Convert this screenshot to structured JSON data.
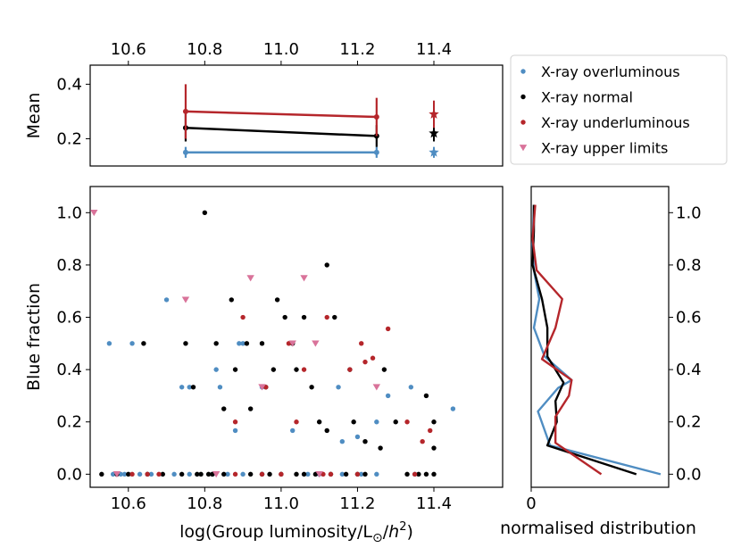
{
  "colors": {
    "overluminous": "#4f8dc2",
    "normal": "#000000",
    "underluminous": "#b5262b",
    "upper": "#d9739a"
  },
  "chart_data": [
    {
      "id": "mean",
      "type": "line",
      "ylabel": "Mean",
      "xlim": [
        10.5,
        11.58
      ],
      "ylim": [
        0.1,
        0.47
      ],
      "xticks": [
        "10.6",
        "10.8",
        "11.0",
        "11.2",
        "11.4"
      ],
      "xtick_values": [
        10.6,
        10.8,
        11.0,
        11.2,
        11.4
      ],
      "yticks": [
        "0.2",
        "0.4"
      ],
      "ytick_values": [
        0.2,
        0.4
      ],
      "series": [
        {
          "name": "X-ray overluminous",
          "key": "overluminous",
          "x": [
            10.75,
            11.25
          ],
          "y": [
            0.15,
            0.15
          ],
          "err": [
            0.02,
            0.02
          ],
          "star": {
            "x": 11.4,
            "y": 0.15,
            "err": 0.02
          }
        },
        {
          "name": "X-ray normal",
          "key": "normal",
          "x": [
            10.75,
            11.25
          ],
          "y": [
            0.24,
            0.21
          ],
          "err": [
            0.05,
            0.04
          ],
          "star": {
            "x": 11.4,
            "y": 0.22,
            "err": 0.03
          }
        },
        {
          "name": "X-ray underluminous",
          "key": "underluminous",
          "x": [
            10.75,
            11.25
          ],
          "y": [
            0.3,
            0.28
          ],
          "err": [
            0.1,
            0.07
          ],
          "star": {
            "x": 11.4,
            "y": 0.29,
            "err": 0.05
          }
        }
      ]
    },
    {
      "id": "scatter",
      "type": "scatter",
      "xlabel": "log(Group luminosity/L",
      "xlabel_sub": "⊙",
      "xlabel_tail": "/h",
      "xlabel_sup": "2",
      "xlabel_close": ")",
      "ylabel": "Blue fraction",
      "xlim": [
        10.5,
        11.58
      ],
      "ylim": [
        -0.05,
        1.1
      ],
      "xticks": [
        "10.6",
        "10.8",
        "11.0",
        "11.2",
        "11.4"
      ],
      "xtick_values": [
        10.6,
        10.8,
        11.0,
        11.2,
        11.4
      ],
      "yticks": [
        "0.0",
        "0.2",
        "0.4",
        "0.6",
        "0.8",
        "1.0"
      ],
      "ytick_values": [
        0.0,
        0.2,
        0.4,
        0.6,
        0.8,
        1.0
      ],
      "series": [
        {
          "name": "X-ray overluminous",
          "key": "overluminous",
          "marker": "dot",
          "points": [
            [
              10.55,
              0.5
            ],
            [
              10.61,
              0.5
            ],
            [
              10.7,
              0.667
            ],
            [
              10.74,
              0.333
            ],
            [
              10.76,
              0.333
            ],
            [
              10.83,
              0.4
            ],
            [
              10.84,
              0.333
            ],
            [
              10.89,
              0.5
            ],
            [
              10.9,
              0.5
            ],
            [
              10.95,
              0.333
            ],
            [
              11.03,
              0.167
            ],
            [
              11.15,
              0.333
            ],
            [
              11.16,
              0.125
            ],
            [
              11.2,
              0.143
            ],
            [
              11.25,
              0.2
            ],
            [
              11.28,
              0.3
            ],
            [
              11.34,
              0.333
            ],
            [
              11.45,
              0.25
            ],
            [
              10.88,
              0.167
            ],
            [
              10.56,
              0
            ],
            [
              10.58,
              0
            ],
            [
              10.59,
              0
            ],
            [
              10.63,
              0
            ],
            [
              10.66,
              0
            ],
            [
              10.72,
              0
            ],
            [
              10.76,
              0
            ],
            [
              10.82,
              0
            ],
            [
              10.86,
              0
            ],
            [
              10.9,
              0
            ],
            [
              10.95,
              0
            ],
            [
              11.07,
              0
            ],
            [
              11.1,
              0
            ],
            [
              11.16,
              0
            ],
            [
              11.21,
              0
            ],
            [
              11.25,
              0
            ],
            [
              11.35,
              0
            ]
          ]
        },
        {
          "name": "X-ray normal",
          "key": "normal",
          "marker": "dot",
          "points": [
            [
              10.64,
              0.5
            ],
            [
              10.75,
              0.5
            ],
            [
              10.77,
              0.333
            ],
            [
              10.8,
              1.0
            ],
            [
              10.83,
              0.5
            ],
            [
              10.85,
              0.25
            ],
            [
              10.87,
              0.667
            ],
            [
              10.88,
              0.4
            ],
            [
              10.91,
              0.5
            ],
            [
              10.92,
              0.25
            ],
            [
              10.95,
              0.5
            ],
            [
              10.96,
              0.333
            ],
            [
              10.98,
              0.4
            ],
            [
              10.99,
              0.667
            ],
            [
              11.01,
              0.6
            ],
            [
              11.03,
              0.5
            ],
            [
              11.04,
              0.4
            ],
            [
              11.06,
              0.6
            ],
            [
              11.08,
              0.333
            ],
            [
              11.1,
              0.2
            ],
            [
              11.12,
              0.8
            ],
            [
              11.12,
              0.167
            ],
            [
              11.14,
              0.6
            ],
            [
              11.18,
              0.4
            ],
            [
              11.19,
              0.2
            ],
            [
              11.22,
              0.125
            ],
            [
              11.27,
              0.4
            ],
            [
              11.3,
              0.2
            ],
            [
              11.38,
              0.3
            ],
            [
              11.4,
              0.2
            ],
            [
              11.4,
              0.1
            ],
            [
              11.26,
              0.1
            ],
            [
              10.53,
              0
            ],
            [
              10.57,
              0
            ],
            [
              10.6,
              0
            ],
            [
              10.65,
              0
            ],
            [
              10.69,
              0
            ],
            [
              10.74,
              0
            ],
            [
              10.78,
              0
            ],
            [
              10.79,
              0
            ],
            [
              10.81,
              0
            ],
            [
              10.82,
              0
            ],
            [
              10.85,
              0
            ],
            [
              10.92,
              0
            ],
            [
              10.95,
              0
            ],
            [
              10.97,
              0
            ],
            [
              11.0,
              0
            ],
            [
              11.04,
              0
            ],
            [
              11.06,
              0
            ],
            [
              11.09,
              0
            ],
            [
              11.13,
              0
            ],
            [
              11.17,
              0
            ],
            [
              11.2,
              0
            ],
            [
              11.22,
              0
            ],
            [
              11.33,
              0
            ],
            [
              11.36,
              0
            ],
            [
              11.38,
              0
            ],
            [
              11.4,
              0
            ]
          ]
        },
        {
          "name": "X-ray underluminous",
          "key": "underluminous",
          "marker": "dot",
          "points": [
            [
              10.9,
              0.6
            ],
            [
              10.88,
              0.2
            ],
            [
              10.96,
              0.333
            ],
            [
              11.02,
              0.5
            ],
            [
              11.04,
              0.2
            ],
            [
              11.06,
              0.4
            ],
            [
              11.12,
              0.6
            ],
            [
              11.18,
              0.4
            ],
            [
              11.21,
              0.5
            ],
            [
              11.22,
              0.429
            ],
            [
              11.24,
              0.444
            ],
            [
              11.28,
              0.556
            ],
            [
              11.33,
              0.2
            ],
            [
              11.37,
              0.125
            ],
            [
              11.39,
              0.167
            ],
            [
              10.61,
              0
            ],
            [
              10.65,
              0
            ],
            [
              10.68,
              0
            ],
            [
              10.88,
              0
            ],
            [
              10.95,
              0
            ],
            [
              11.0,
              0
            ],
            [
              11.11,
              0
            ],
            [
              11.13,
              0
            ],
            [
              11.2,
              0
            ],
            [
              11.35,
              0
            ]
          ]
        },
        {
          "name": "X-ray upper limits",
          "key": "upper",
          "marker": "tri",
          "points": [
            [
              10.51,
              1.0
            ],
            [
              10.75,
              0.667
            ],
            [
              10.92,
              0.75
            ],
            [
              10.95,
              0.333
            ],
            [
              11.03,
              0.5
            ],
            [
              11.06,
              0.75
            ],
            [
              11.09,
              0.5
            ],
            [
              11.25,
              0.333
            ],
            [
              10.57,
              0
            ],
            [
              10.83,
              0
            ],
            [
              11.1,
              0
            ]
          ]
        }
      ]
    },
    {
      "id": "dist",
      "type": "line",
      "xlabel": "normalised distribution",
      "xlim": [
        0,
        5.1
      ],
      "ylim": [
        -0.05,
        1.1
      ],
      "xticks": [
        "0"
      ],
      "xtick_values": [
        0
      ],
      "yticks": [
        "0.0",
        "0.2",
        "0.4",
        "0.6",
        "0.8",
        "1.0"
      ],
      "ytick_values": [
        0.0,
        0.2,
        0.4,
        0.6,
        0.8,
        1.0
      ],
      "series": [
        {
          "name": "X-ray overluminous",
          "key": "overluminous",
          "x": [
            4.8,
            0.7,
            0.25,
            1.0,
            1.5,
            0.5,
            0.1,
            0.3,
            0.1,
            0.05,
            0.1
          ],
          "y": [
            0.0,
            0.11,
            0.24,
            0.33,
            0.36,
            0.45,
            0.56,
            0.67,
            0.78,
            0.88,
            1.03
          ]
        },
        {
          "name": "X-ray normal",
          "key": "normal",
          "x": [
            3.9,
            0.6,
            0.95,
            0.9,
            1.2,
            0.6,
            0.6,
            0.4,
            0.05,
            0.1,
            0.1
          ],
          "y": [
            0.0,
            0.11,
            0.2,
            0.28,
            0.35,
            0.45,
            0.56,
            0.67,
            0.8,
            0.93,
            1.03
          ]
        },
        {
          "name": "X-ray underluminous",
          "key": "underluminous",
          "x": [
            2.6,
            0.9,
            0.9,
            1.4,
            1.5,
            0.4,
            0.9,
            1.15,
            0.2,
            0.05,
            0.15
          ],
          "y": [
            0.0,
            0.12,
            0.22,
            0.3,
            0.36,
            0.44,
            0.56,
            0.67,
            0.78,
            0.9,
            1.03
          ]
        }
      ]
    }
  ],
  "legend": {
    "position": "top-right",
    "entries": [
      {
        "key": "overluminous",
        "label": "X-ray overluminous",
        "marker": "dot"
      },
      {
        "key": "normal",
        "label": "X-ray normal",
        "marker": "dot"
      },
      {
        "key": "underluminous",
        "label": "X-ray underluminous",
        "marker": "dot"
      },
      {
        "key": "upper",
        "label": "X-ray upper limits",
        "marker": "tri"
      }
    ]
  }
}
